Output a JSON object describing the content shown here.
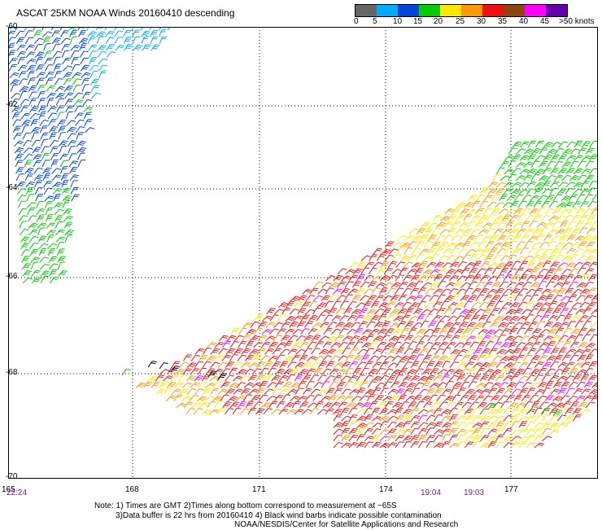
{
  "title": "ASCAT 25KM NOAA Winds 20160410 descending",
  "colorbar": {
    "unit_label": ">50 knots",
    "tick_labels": [
      "0",
      "5",
      "10",
      "15",
      "20",
      "25",
      "30",
      "35",
      "40",
      "45"
    ],
    "colors": [
      "#666666",
      "#00aaff",
      "#0044dd",
      "#00cc00",
      "#ffe800",
      "#ff9900",
      "#ee1111",
      "#8b4513",
      "#ff00ff",
      "#6600aa"
    ]
  },
  "map": {
    "latitude_labels": [
      "-60",
      "-62",
      "-64",
      "-66",
      "-68",
      "-70"
    ],
    "longitude_labels": [
      "165",
      "168",
      "171",
      "174",
      "177"
    ],
    "time_labels": [
      "22:24",
      "19:04",
      "19:03"
    ],
    "gridlines": "dotted"
  },
  "notes": {
    "line1": "Note: 1) Times are GMT 2)Times along bottom correspond to measurement at ~65S",
    "line2": "3)Data buffer is 22 hrs from 20160410 4) Black wind barbs indicate possible contamination",
    "line3": "NOAA/NESDIS/Center for Satellite Applications and Research"
  }
}
